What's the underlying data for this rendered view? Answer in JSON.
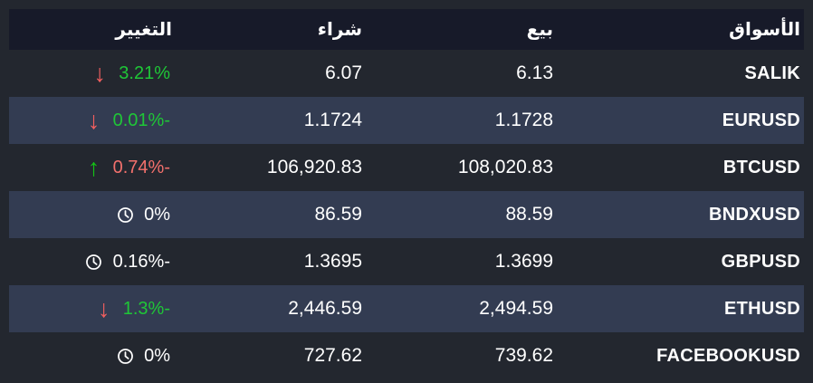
{
  "colors": {
    "page_bg": "#23272f",
    "header_bg": "#171a29",
    "alt_row_bg": "#333c52",
    "text": "#ffffff",
    "green_text": "#1fc637",
    "red_text": "#f2706c",
    "arrow_green": "#14c316",
    "arrow_red": "#f25f5f"
  },
  "table": {
    "columns": [
      {
        "key": "change",
        "label": "التغيير"
      },
      {
        "key": "buy",
        "label": "شراء"
      },
      {
        "key": "sell",
        "label": "بيع"
      },
      {
        "key": "markets",
        "label": "الأسواق"
      }
    ],
    "rows": [
      {
        "symbol": "SALIK",
        "sell": "6.13",
        "buy": "6.07",
        "change": "3.21%",
        "change_color": "green",
        "icon": "arrow-down"
      },
      {
        "symbol": "EURUSD",
        "sell": "1.1728",
        "buy": "1.1724",
        "change": "0.01%-",
        "change_color": "green",
        "icon": "arrow-down"
      },
      {
        "symbol": "BTCUSD",
        "sell": "108,020.83",
        "buy": "106,920.83",
        "change": "0.74%-",
        "change_color": "red",
        "icon": "arrow-up"
      },
      {
        "symbol": "BNDXUSD",
        "sell": "88.59",
        "buy": "86.59",
        "change": "0%",
        "change_color": "white",
        "icon": "clock"
      },
      {
        "symbol": "GBPUSD",
        "sell": "1.3699",
        "buy": "1.3695",
        "change": "0.16%-",
        "change_color": "white",
        "icon": "clock"
      },
      {
        "symbol": "ETHUSD",
        "sell": "2,494.59",
        "buy": "2,446.59",
        "change": "1.3%-",
        "change_color": "green",
        "icon": "arrow-down"
      },
      {
        "symbol": "FACEBOOKUSD",
        "sell": "739.62",
        "buy": "727.62",
        "change": "0%",
        "change_color": "white",
        "icon": "clock"
      }
    ]
  }
}
